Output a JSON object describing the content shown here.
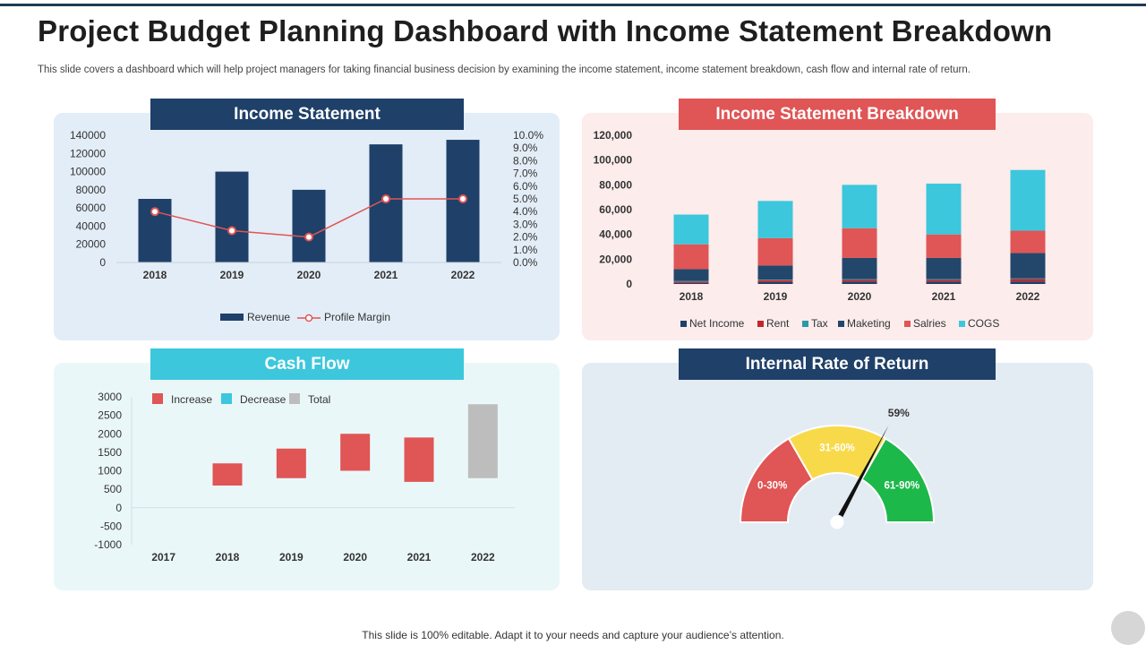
{
  "header": {
    "title": "Project Budget Planning Dashboard with Income Statement Breakdown",
    "subtitle": "This slide covers a dashboard which will help project managers for taking financial business decision by examining the income statement, income statement breakdown, cash flow and internal rate of return."
  },
  "footer": {
    "text": "This slide is 100% editable. Adapt it to your needs and capture your audience’s attention."
  },
  "colors": {
    "navy": "#1f4068",
    "red": "#e05555",
    "cyan": "#3cc7dc",
    "gray": "#bdbdbd",
    "yellow": "#f8d94a",
    "green": "#1db84a",
    "darkred": "#c0282c",
    "teal": "#2b9aa8"
  },
  "panels": {
    "income_statement": "Income Statement",
    "breakdown": "Income Statement Breakdown",
    "cash_flow": "Cash Flow",
    "irr": "Internal Rate of Return"
  },
  "chart_data": [
    {
      "id": "income_statement",
      "type": "bar",
      "title": "Income Statement",
      "categories": [
        "2018",
        "2019",
        "2020",
        "2021",
        "2022"
      ],
      "series": [
        {
          "name": "Revenue",
          "type": "bar",
          "axis": "left",
          "values": [
            70000,
            100000,
            80000,
            130000,
            135000
          ]
        },
        {
          "name": "Profile Margin",
          "type": "line",
          "axis": "right",
          "values": [
            4.0,
            2.5,
            2.0,
            5.0,
            5.0
          ]
        }
      ],
      "ylim": [
        0,
        140000
      ],
      "yticks": [
        "140000",
        "120000",
        "100000",
        "80000",
        "60000",
        "40000",
        "20000",
        "0"
      ],
      "y2lim": [
        0,
        10
      ],
      "y2ticks": [
        "10.0%",
        "9.0%",
        "8.0%",
        "7.0%",
        "6.0%",
        "5.0%",
        "4.0%",
        "3.0%",
        "2.0%",
        "1.0%",
        "0.0%"
      ],
      "legend": [
        "Revenue",
        "Profile Margin"
      ]
    },
    {
      "id": "breakdown",
      "type": "bar",
      "stacked": true,
      "title": "Income Statement Breakdown",
      "categories": [
        "2018",
        "2019",
        "2020",
        "2021",
        "2022"
      ],
      "series": [
        {
          "name": "Net Income",
          "values": [
            1000,
            1500,
            2000,
            2000,
            2000
          ]
        },
        {
          "name": "Rent",
          "values": [
            1000,
            1500,
            1500,
            1500,
            2000
          ]
        },
        {
          "name": "Tax",
          "values": [
            500,
            500,
            500,
            500,
            500
          ]
        },
        {
          "name": "Maketing",
          "values": [
            9500,
            11500,
            17000,
            17000,
            20500
          ]
        },
        {
          "name": "Salries",
          "values": [
            20000,
            22000,
            24000,
            19000,
            18000
          ]
        },
        {
          "name": "COGS",
          "values": [
            24000,
            30000,
            35000,
            41000,
            49000
          ]
        }
      ],
      "ylim": [
        0,
        120000
      ],
      "yticks": [
        "120,000",
        "100,000",
        "80,000",
        "60,000",
        "40,000",
        "20,000",
        "0"
      ],
      "legend": [
        "Net Income",
        "Rent",
        "Tax",
        "Maketing",
        "Salries",
        "COGS"
      ]
    },
    {
      "id": "cash_flow",
      "type": "bar",
      "subtype": "waterfall",
      "title": "Cash Flow",
      "categories": [
        "2017",
        "2018",
        "2019",
        "2020",
        "2021",
        "2022"
      ],
      "bars": [
        {
          "category": "2017",
          "kind": "none",
          "start": 0,
          "end": 0
        },
        {
          "category": "2018",
          "kind": "Increase",
          "start": 600,
          "end": 1200
        },
        {
          "category": "2019",
          "kind": "Increase",
          "start": 800,
          "end": 1600
        },
        {
          "category": "2020",
          "kind": "Increase",
          "start": 1000,
          "end": 2000
        },
        {
          "category": "2021",
          "kind": "Increase",
          "start": 700,
          "end": 1900
        },
        {
          "category": "2022",
          "kind": "Total",
          "start": 800,
          "end": 2800
        }
      ],
      "ylim": [
        -1000,
        3000
      ],
      "yticks": [
        "3000",
        "2500",
        "2000",
        "1500",
        "1000",
        "500",
        "0",
        "-500",
        "-1000"
      ],
      "legend": [
        "Increase",
        "Decrease",
        "Total"
      ]
    },
    {
      "id": "irr",
      "type": "gauge",
      "title": "Internal Rate of Return",
      "value": 59,
      "value_label": "59%",
      "segments": [
        {
          "label": "0-30%",
          "from": 0,
          "to": 30
        },
        {
          "label": "31-60%",
          "from": 30,
          "to": 60
        },
        {
          "label": "61-90%",
          "from": 60,
          "to": 90
        }
      ]
    }
  ]
}
